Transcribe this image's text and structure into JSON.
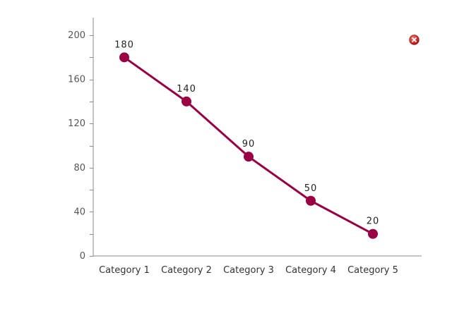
{
  "chart_data": {
    "type": "line",
    "categories": [
      "Category 1",
      "Category 2",
      "Category 3",
      "Category 4",
      "Category 5"
    ],
    "series": [
      {
        "values": [
          180,
          140,
          90,
          50,
          20
        ]
      }
    ],
    "data_labels": [
      "180",
      "140",
      "90",
      "50",
      "20"
    ],
    "yticks": [
      "0",
      "40",
      "80",
      "120",
      "160",
      "200"
    ],
    "ylim": [
      0,
      216
    ],
    "minor_tick_step": 20,
    "line_color": "#9b0045",
    "axis_color": "#888888",
    "grid": false,
    "legend": "none"
  },
  "controls": {
    "close_icon": "close-icon",
    "close_color": "#cc2a2a"
  }
}
